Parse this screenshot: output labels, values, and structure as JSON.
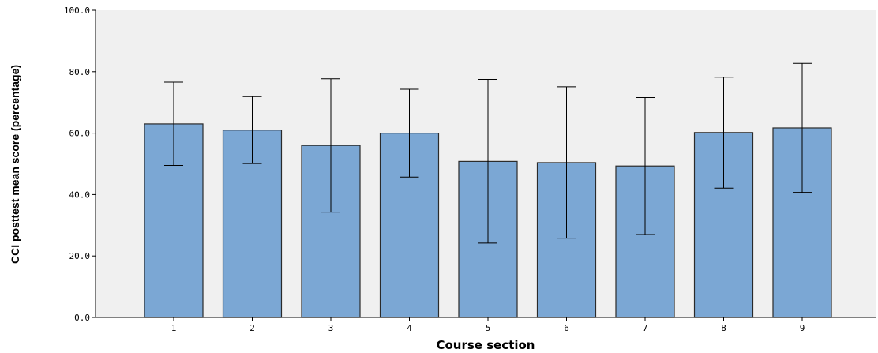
{
  "chart_data": {
    "type": "bar",
    "title": "",
    "xlabel": "Course section",
    "ylabel": "CCI posttest mean score (percentage)",
    "categories": [
      "1",
      "2",
      "3",
      "4",
      "5",
      "6",
      "7",
      "8",
      "9"
    ],
    "values": [
      63.0,
      61.0,
      56.0,
      60.0,
      50.8,
      50.4,
      49.3,
      60.2,
      61.7
    ],
    "error_low": [
      49.5,
      50.1,
      34.3,
      45.7,
      24.2,
      25.8,
      27.0,
      42.1,
      40.7
    ],
    "error_high": [
      76.6,
      71.9,
      77.7,
      74.3,
      77.5,
      75.1,
      71.6,
      78.2,
      82.7
    ],
    "ylim": [
      0,
      100
    ],
    "yticks": [
      "0.0",
      "20.0",
      "40.0",
      "60.0",
      "80.0",
      "100.0"
    ],
    "grid": false,
    "colors": {
      "bar_fill": "#7ba7d4",
      "bar_stroke": "#2a2a2a",
      "plot_background": "#f0f0f0",
      "error_bar": "#000000"
    }
  }
}
